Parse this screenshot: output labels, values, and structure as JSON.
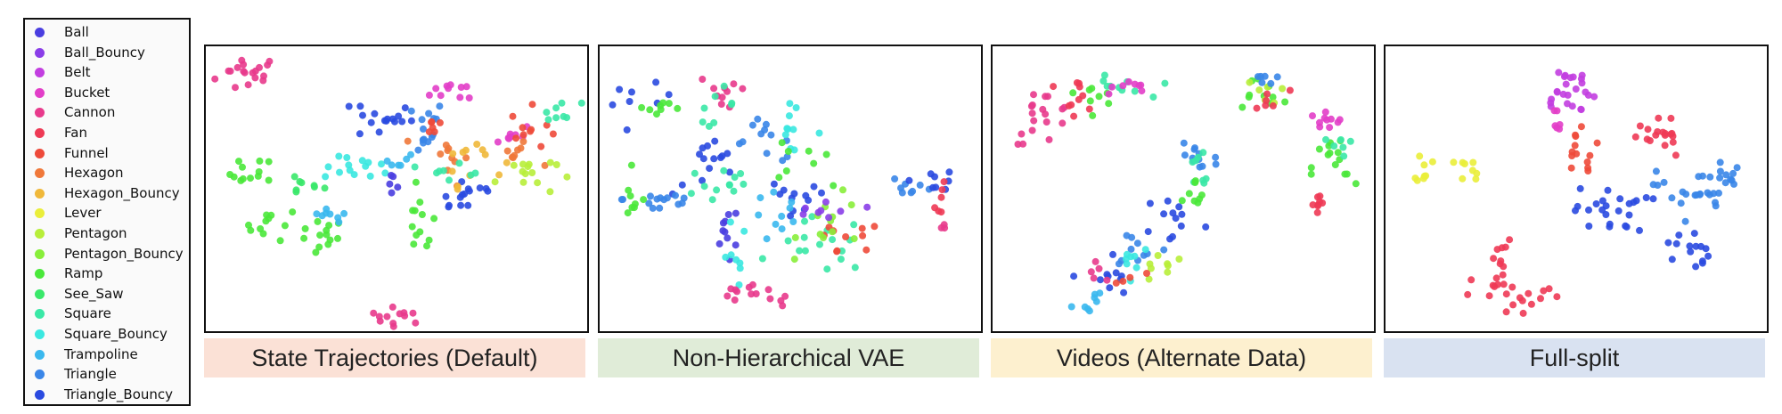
{
  "legend": {
    "items": [
      {
        "label": "Ball",
        "color": "#4a3ee0"
      },
      {
        "label": "Ball_Bouncy",
        "color": "#8a3ee8"
      },
      {
        "label": "Belt",
        "color": "#c23ee0"
      },
      {
        "label": "Bucket",
        "color": "#e23ec8"
      },
      {
        "label": "Cannon",
        "color": "#e83a8c"
      },
      {
        "label": "Fan",
        "color": "#ee3a55"
      },
      {
        "label": "Funnel",
        "color": "#ee4a3a"
      },
      {
        "label": "Hexagon",
        "color": "#f0783a"
      },
      {
        "label": "Hexagon_Bouncy",
        "color": "#f0b83a"
      },
      {
        "label": "Lever",
        "color": "#eaee3a"
      },
      {
        "label": "Pentagon",
        "color": "#b8ee3a"
      },
      {
        "label": "Pentagon_Bouncy",
        "color": "#88ee3a"
      },
      {
        "label": "Ramp",
        "color": "#4ae83a"
      },
      {
        "label": "See_Saw",
        "color": "#3ae86a"
      },
      {
        "label": "Square",
        "color": "#3ae8a6"
      },
      {
        "label": "Square_Bouncy",
        "color": "#3ae8e0"
      },
      {
        "label": "Trampoline",
        "color": "#3ab8ee"
      },
      {
        "label": "Triangle",
        "color": "#3a86e8"
      },
      {
        "label": "Triangle_Bouncy",
        "color": "#2a4ae0"
      }
    ]
  },
  "panels": [
    {
      "caption": "State Trajectories (Default)",
      "caption_bg": "#fbe1d6"
    },
    {
      "caption": "Non-Hierarchical VAE",
      "caption_bg": "#e0ecd8"
    },
    {
      "caption": "Videos (Alternate Data)",
      "caption_bg": "#fdf0cf"
    },
    {
      "caption": "Full-split",
      "caption_bg": "#d9e2f1"
    }
  ],
  "chart_data": [
    {
      "type": "scatter",
      "title": "State Trajectories (Default)",
      "xlabel": "",
      "ylabel": "",
      "clusters": [
        {
          "class": "Cannon",
          "x": 0.1,
          "y": 0.92,
          "sx": 0.045,
          "sy": 0.035,
          "n": 18
        },
        {
          "class": "Cannon",
          "x": 0.5,
          "y": 0.05,
          "sx": 0.04,
          "sy": 0.015,
          "n": 12
        },
        {
          "class": "Ramp",
          "x": 0.11,
          "y": 0.56,
          "sx": 0.03,
          "sy": 0.03,
          "n": 12
        },
        {
          "class": "Ramp",
          "x": 0.16,
          "y": 0.38,
          "sx": 0.035,
          "sy": 0.03,
          "n": 10
        },
        {
          "class": "Ramp",
          "x": 0.28,
          "y": 0.33,
          "sx": 0.04,
          "sy": 0.035,
          "n": 14
        },
        {
          "class": "Ramp",
          "x": 0.56,
          "y": 0.38,
          "sx": 0.02,
          "sy": 0.06,
          "n": 12
        },
        {
          "class": "See_Saw",
          "x": 0.24,
          "y": 0.52,
          "sx": 0.03,
          "sy": 0.02,
          "n": 8
        },
        {
          "class": "Trampoline",
          "x": 0.31,
          "y": 0.4,
          "sx": 0.03,
          "sy": 0.02,
          "n": 8
        },
        {
          "class": "Square_Bouncy",
          "x": 0.4,
          "y": 0.58,
          "sx": 0.05,
          "sy": 0.02,
          "n": 14
        },
        {
          "class": "Triangle_Bouncy",
          "x": 0.46,
          "y": 0.76,
          "sx": 0.04,
          "sy": 0.04,
          "n": 16
        },
        {
          "class": "Triangle",
          "x": 0.55,
          "y": 0.73,
          "sx": 0.04,
          "sy": 0.05,
          "n": 14
        },
        {
          "class": "Triangle_Bouncy",
          "x": 0.68,
          "y": 0.49,
          "sx": 0.05,
          "sy": 0.04,
          "n": 14
        },
        {
          "class": "Bucket",
          "x": 0.67,
          "y": 0.86,
          "sx": 0.04,
          "sy": 0.02,
          "n": 10
        },
        {
          "class": "Bucket",
          "x": 0.8,
          "y": 0.7,
          "sx": 0.03,
          "sy": 0.02,
          "n": 8
        },
        {
          "class": "Hexagon",
          "x": 0.63,
          "y": 0.62,
          "sx": 0.03,
          "sy": 0.05,
          "n": 10
        },
        {
          "class": "Hexagon_Bouncy",
          "x": 0.7,
          "y": 0.62,
          "sx": 0.04,
          "sy": 0.05,
          "n": 12
        },
        {
          "class": "Hexagon",
          "x": 0.81,
          "y": 0.63,
          "sx": 0.03,
          "sy": 0.02,
          "n": 8
        },
        {
          "class": "Funnel",
          "x": 0.86,
          "y": 0.72,
          "sx": 0.03,
          "sy": 0.04,
          "n": 10
        },
        {
          "class": "Funnel",
          "x": 0.59,
          "y": 0.73,
          "sx": 0.02,
          "sy": 0.02,
          "n": 6
        },
        {
          "class": "Pentagon",
          "x": 0.84,
          "y": 0.56,
          "sx": 0.04,
          "sy": 0.04,
          "n": 14
        },
        {
          "class": "Square",
          "x": 0.93,
          "y": 0.78,
          "sx": 0.04,
          "sy": 0.02,
          "n": 8
        },
        {
          "class": "Square",
          "x": 0.66,
          "y": 0.58,
          "sx": 0.04,
          "sy": 0.02,
          "n": 8
        },
        {
          "class": "Trampoline",
          "x": 0.5,
          "y": 0.62,
          "sx": 0.02,
          "sy": 0.03,
          "n": 6
        },
        {
          "class": "Ball",
          "x": 0.49,
          "y": 0.52,
          "sx": 0.02,
          "sy": 0.02,
          "n": 5
        }
      ]
    },
    {
      "type": "scatter",
      "title": "Non-Hierarchical VAE",
      "xlabel": "",
      "ylabel": "",
      "clusters": [
        {
          "class": "Triangle_Bouncy",
          "x": 0.1,
          "y": 0.82,
          "sx": 0.04,
          "sy": 0.03,
          "n": 8
        },
        {
          "class": "Ramp",
          "x": 0.14,
          "y": 0.8,
          "sx": 0.04,
          "sy": 0.02,
          "n": 8
        },
        {
          "class": "Cannon",
          "x": 0.33,
          "y": 0.85,
          "sx": 0.04,
          "sy": 0.04,
          "n": 10
        },
        {
          "class": "Square",
          "x": 0.29,
          "y": 0.81,
          "sx": 0.03,
          "sy": 0.03,
          "n": 8
        },
        {
          "class": "Triangle",
          "x": 0.44,
          "y": 0.68,
          "sx": 0.05,
          "sy": 0.04,
          "n": 12
        },
        {
          "class": "Square_Bouncy",
          "x": 0.48,
          "y": 0.72,
          "sx": 0.05,
          "sy": 0.04,
          "n": 10
        },
        {
          "class": "Ramp",
          "x": 0.52,
          "y": 0.62,
          "sx": 0.04,
          "sy": 0.04,
          "n": 8
        },
        {
          "class": "Triangle_Bouncy",
          "x": 0.28,
          "y": 0.58,
          "sx": 0.05,
          "sy": 0.05,
          "n": 14
        },
        {
          "class": "Square",
          "x": 0.31,
          "y": 0.52,
          "sx": 0.05,
          "sy": 0.05,
          "n": 12
        },
        {
          "class": "Triangle",
          "x": 0.15,
          "y": 0.47,
          "sx": 0.05,
          "sy": 0.03,
          "n": 14
        },
        {
          "class": "Ramp",
          "x": 0.08,
          "y": 0.46,
          "sx": 0.02,
          "sy": 0.04,
          "n": 8
        },
        {
          "class": "Ball",
          "x": 0.33,
          "y": 0.34,
          "sx": 0.02,
          "sy": 0.06,
          "n": 10
        },
        {
          "class": "Square_Bouncy",
          "x": 0.34,
          "y": 0.26,
          "sx": 0.02,
          "sy": 0.06,
          "n": 8
        },
        {
          "class": "Triangle_Bouncy",
          "x": 0.5,
          "y": 0.45,
          "sx": 0.05,
          "sy": 0.05,
          "n": 12
        },
        {
          "class": "Trampoline",
          "x": 0.47,
          "y": 0.4,
          "sx": 0.04,
          "sy": 0.05,
          "n": 10
        },
        {
          "class": "Square",
          "x": 0.58,
          "y": 0.3,
          "sx": 0.06,
          "sy": 0.05,
          "n": 16
        },
        {
          "class": "Funnel",
          "x": 0.63,
          "y": 0.3,
          "sx": 0.06,
          "sy": 0.05,
          "n": 10
        },
        {
          "class": "Pentagon_Bouncy",
          "x": 0.62,
          "y": 0.38,
          "sx": 0.05,
          "sy": 0.05,
          "n": 12
        },
        {
          "class": "Ball_Bouncy",
          "x": 0.58,
          "y": 0.42,
          "sx": 0.05,
          "sy": 0.03,
          "n": 8
        },
        {
          "class": "Cannon",
          "x": 0.39,
          "y": 0.14,
          "sx": 0.04,
          "sy": 0.02,
          "n": 10
        },
        {
          "class": "Cannon",
          "x": 0.47,
          "y": 0.1,
          "sx": 0.01,
          "sy": 0.01,
          "n": 4
        },
        {
          "class": "Triangle",
          "x": 0.82,
          "y": 0.52,
          "sx": 0.03,
          "sy": 0.02,
          "n": 8
        },
        {
          "class": "Triangle_Bouncy",
          "x": 0.88,
          "y": 0.54,
          "sx": 0.03,
          "sy": 0.02,
          "n": 8
        },
        {
          "class": "Fan",
          "x": 0.9,
          "y": 0.46,
          "sx": 0.01,
          "sy": 0.03,
          "n": 6
        },
        {
          "class": "Cannon",
          "x": 0.91,
          "y": 0.37,
          "sx": 0.01,
          "sy": 0.01,
          "n": 3
        }
      ]
    },
    {
      "type": "scatter",
      "title": "Videos (Alternate Data)",
      "xlabel": "",
      "ylabel": "",
      "clusters": [
        {
          "class": "Cannon",
          "x": 0.12,
          "y": 0.77,
          "sx": 0.04,
          "sy": 0.05,
          "n": 18
        },
        {
          "class": "Fan",
          "x": 0.2,
          "y": 0.84,
          "sx": 0.04,
          "sy": 0.03,
          "n": 10
        },
        {
          "class": "Ramp",
          "x": 0.27,
          "y": 0.85,
          "sx": 0.03,
          "sy": 0.02,
          "n": 8
        },
        {
          "class": "Square",
          "x": 0.32,
          "y": 0.87,
          "sx": 0.04,
          "sy": 0.02,
          "n": 10
        },
        {
          "class": "Bucket",
          "x": 0.33,
          "y": 0.87,
          "sx": 0.04,
          "sy": 0.02,
          "n": 8
        },
        {
          "class": "Ramp",
          "x": 0.7,
          "y": 0.85,
          "sx": 0.04,
          "sy": 0.03,
          "n": 10
        },
        {
          "class": "Pentagon",
          "x": 0.72,
          "y": 0.86,
          "sx": 0.03,
          "sy": 0.02,
          "n": 6
        },
        {
          "class": "Triangle",
          "x": 0.7,
          "y": 0.9,
          "sx": 0.02,
          "sy": 0.02,
          "n": 6
        },
        {
          "class": "Fan",
          "x": 0.72,
          "y": 0.82,
          "sx": 0.03,
          "sy": 0.02,
          "n": 6
        },
        {
          "class": "Bucket",
          "x": 0.87,
          "y": 0.75,
          "sx": 0.03,
          "sy": 0.02,
          "n": 10
        },
        {
          "class": "Ramp",
          "x": 0.9,
          "y": 0.58,
          "sx": 0.03,
          "sy": 0.06,
          "n": 14
        },
        {
          "class": "Square",
          "x": 0.91,
          "y": 0.66,
          "sx": 0.02,
          "sy": 0.02,
          "n": 6
        },
        {
          "class": "Fan",
          "x": 0.86,
          "y": 0.45,
          "sx": 0.02,
          "sy": 0.03,
          "n": 8
        },
        {
          "class": "Triangle",
          "x": 0.53,
          "y": 0.62,
          "sx": 0.03,
          "sy": 0.06,
          "n": 12
        },
        {
          "class": "Square",
          "x": 0.54,
          "y": 0.57,
          "sx": 0.02,
          "sy": 0.05,
          "n": 8
        },
        {
          "class": "Triangle_Bouncy",
          "x": 0.47,
          "y": 0.4,
          "sx": 0.04,
          "sy": 0.05,
          "n": 12
        },
        {
          "class": "Triangle",
          "x": 0.38,
          "y": 0.3,
          "sx": 0.04,
          "sy": 0.04,
          "n": 10
        },
        {
          "class": "Square_Bouncy",
          "x": 0.36,
          "y": 0.26,
          "sx": 0.03,
          "sy": 0.03,
          "n": 8
        },
        {
          "class": "Pentagon",
          "x": 0.44,
          "y": 0.23,
          "sx": 0.03,
          "sy": 0.03,
          "n": 8
        },
        {
          "class": "Ramp",
          "x": 0.53,
          "y": 0.46,
          "sx": 0.02,
          "sy": 0.04,
          "n": 8
        },
        {
          "class": "Triangle_Bouncy",
          "x": 0.29,
          "y": 0.18,
          "sx": 0.03,
          "sy": 0.05,
          "n": 10
        },
        {
          "class": "Trampoline",
          "x": 0.24,
          "y": 0.1,
          "sx": 0.02,
          "sy": 0.03,
          "n": 8
        },
        {
          "class": "Cannon",
          "x": 0.27,
          "y": 0.22,
          "sx": 0.02,
          "sy": 0.03,
          "n": 5
        },
        {
          "class": "Funnel",
          "x": 0.35,
          "y": 0.2,
          "sx": 0.02,
          "sy": 0.02,
          "n": 4
        }
      ]
    },
    {
      "type": "scatter",
      "title": "Full-split",
      "xlabel": "",
      "ylabel": "",
      "clusters": [
        {
          "class": "Lever",
          "x": 0.09,
          "y": 0.58,
          "sx": 0.01,
          "sy": 0.03,
          "n": 8
        },
        {
          "class": "Lever",
          "x": 0.22,
          "y": 0.58,
          "sx": 0.02,
          "sy": 0.02,
          "n": 8
        },
        {
          "class": "Belt",
          "x": 0.47,
          "y": 0.86,
          "sx": 0.04,
          "sy": 0.05,
          "n": 24
        },
        {
          "class": "Bucket",
          "x": 0.44,
          "y": 0.76,
          "sx": 0.01,
          "sy": 0.04,
          "n": 6
        },
        {
          "class": "Funnel",
          "x": 0.49,
          "y": 0.66,
          "sx": 0.03,
          "sy": 0.03,
          "n": 8
        },
        {
          "class": "Funnel",
          "x": 0.5,
          "y": 0.59,
          "sx": 0.02,
          "sy": 0.02,
          "n": 5
        },
        {
          "class": "Fan",
          "x": 0.68,
          "y": 0.69,
          "sx": 0.03,
          "sy": 0.04,
          "n": 10
        },
        {
          "class": "Fan",
          "x": 0.74,
          "y": 0.7,
          "sx": 0.02,
          "sy": 0.04,
          "n": 8
        },
        {
          "class": "Triangle_Bouncy",
          "x": 0.59,
          "y": 0.43,
          "sx": 0.05,
          "sy": 0.04,
          "n": 24
        },
        {
          "class": "Triangle_Bouncy",
          "x": 0.79,
          "y": 0.29,
          "sx": 0.03,
          "sy": 0.04,
          "n": 14
        },
        {
          "class": "Triangle",
          "x": 0.81,
          "y": 0.5,
          "sx": 0.05,
          "sy": 0.05,
          "n": 24
        },
        {
          "class": "Triangle",
          "x": 0.9,
          "y": 0.54,
          "sx": 0.03,
          "sy": 0.02,
          "n": 8
        },
        {
          "class": "Fan",
          "x": 0.34,
          "y": 0.12,
          "sx": 0.06,
          "sy": 0.04,
          "n": 22
        },
        {
          "class": "Fan",
          "x": 0.3,
          "y": 0.25,
          "sx": 0.02,
          "sy": 0.04,
          "n": 8
        }
      ]
    }
  ]
}
